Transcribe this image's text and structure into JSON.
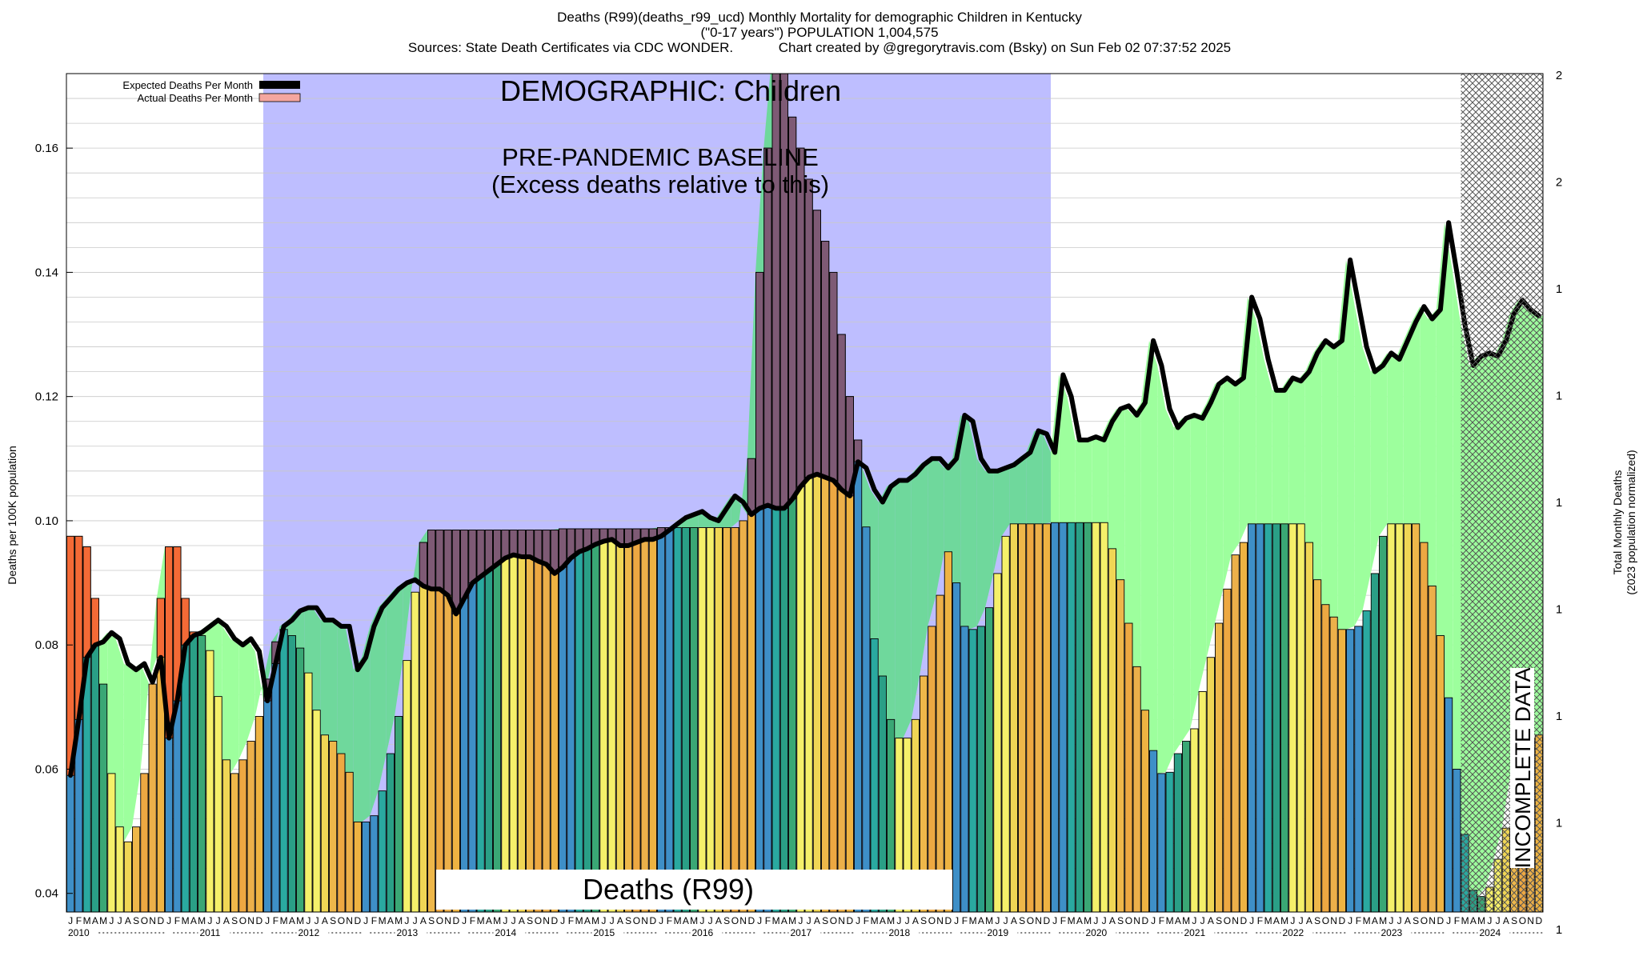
{
  "header": {
    "line1": "Deaths (R99)(deaths_r99_ucd) Monthly Mortality for demographic Children in Kentucky",
    "line2": "(\"0-17 years\") POPULATION 1,004,575",
    "line3": "Sources: State Death Certificates via CDC WONDER.            Chart created by @gregorytravis.com (Bsky) on Sun Feb 02 07:37:52 2025"
  },
  "labels": {
    "demographic": "DEMOGRAPHIC: Children",
    "baseline_line1": "PRE-PANDEMIC BASELINE",
    "baseline_line2": "(Excess deaths relative to this)",
    "cause": "Deaths (R99)",
    "incomplete": "INCOMPLETE DATA",
    "y_left": "Deaths per 100K population",
    "y_right_line1": "Total Monthly Deaths",
    "y_right_line2": "(2023 population normalized)"
  },
  "legend": {
    "expected": "Expected Deaths Per Month",
    "actual": "Actual Deaths Per Month"
  },
  "colors": {
    "baseline_region": "#bebeff",
    "excess_fill": "#9dff9d",
    "overlap_fill": "#6fd89c",
    "excess_actual": "#f46a36",
    "overlap_actual": "#7e5a75",
    "expected_line": "#000000",
    "incomplete_hatch": "#555555",
    "bar_palette": [
      "#3e8fc7",
      "#3e8fc7",
      "#2aa9a0",
      "#2a9f86",
      "#3aa775",
      "#f5f06a",
      "#f5f06a",
      "#f0d655",
      "#eeb74a",
      "#eda842",
      "#ecb04a",
      "#eeb342"
    ]
  },
  "chart_data": {
    "type": "bar",
    "title": "Deaths (R99)(deaths_r99_ucd) Monthly Mortality for demographic Children in Kentucky",
    "ylabel": "Deaths per 100K population",
    "y2label": "Total Monthly Deaths (2023 population normalized)",
    "ylim": [
      0.037,
      0.172
    ],
    "yticks": [
      0.04,
      0.06,
      0.08,
      0.1,
      0.12,
      0.14,
      0.16
    ],
    "right_ticks": [
      "1",
      "1",
      "1",
      "1",
      "1",
      "1",
      "1",
      "2",
      "2"
    ],
    "month_letters": [
      "J",
      "F",
      "M",
      "A",
      "M",
      "J",
      "J",
      "A",
      "S",
      "O",
      "N",
      "D"
    ],
    "years": [
      "2010",
      "2011",
      "2012",
      "2013",
      "2014",
      "2015",
      "2016",
      "2017",
      "2018",
      "2019",
      "2020",
      "2021",
      "2022",
      "2023",
      "2024"
    ],
    "baseline_period": [
      "2012-01",
      "2019-12"
    ],
    "incomplete_period": [
      "2024-04",
      "2024-12"
    ],
    "grid": true,
    "legend_position": "top-left",
    "series": [
      {
        "name": "Actual Deaths Per Month",
        "values": [
          0.0975,
          0.0975,
          0.0958,
          0.0875,
          0.0737,
          0.0593,
          0.0507,
          0.0483,
          0.0507,
          0.0593,
          0.0737,
          0.0875,
          0.0958,
          0.0958,
          0.0875,
          0.0821,
          0.0815,
          0.0791,
          0.0717,
          0.0615,
          0.0593,
          0.0615,
          0.0645,
          0.0685,
          0.0745,
          0.0805,
          0.0825,
          0.0815,
          0.0795,
          0.0755,
          0.0695,
          0.0655,
          0.0645,
          0.0625,
          0.0595,
          0.0515,
          0.0515,
          0.0525,
          0.0565,
          0.0625,
          0.0685,
          0.0775,
          0.0885,
          0.0965,
          0.0985,
          0.0985,
          0.0985,
          0.0985,
          0.0985,
          0.0985,
          0.0985,
          0.0985,
          0.0985,
          0.0985,
          0.0985,
          0.0985,
          0.0985,
          0.0985,
          0.0985,
          0.0985,
          0.0987,
          0.0987,
          0.0987,
          0.0987,
          0.0987,
          0.0987,
          0.0987,
          0.0987,
          0.0987,
          0.0987,
          0.0987,
          0.0987,
          0.0989,
          0.0989,
          0.0989,
          0.0989,
          0.0989,
          0.0989,
          0.0989,
          0.0989,
          0.0989,
          0.0989,
          0.1,
          0.11,
          0.14,
          0.16,
          0.175,
          0.175,
          0.165,
          0.16,
          0.155,
          0.15,
          0.145,
          0.14,
          0.13,
          0.12,
          0.113,
          0.099,
          0.081,
          0.075,
          0.068,
          0.065,
          0.065,
          0.068,
          0.075,
          0.083,
          0.088,
          0.095,
          0.09,
          0.083,
          0.0825,
          0.083,
          0.086,
          0.0915,
          0.0975,
          0.0995,
          0.0995,
          0.0995,
          0.0995,
          0.0995,
          0.0997,
          0.0997,
          0.0997,
          0.0997,
          0.0997,
          0.0997,
          0.0997,
          0.0955,
          0.0905,
          0.0835,
          0.0765,
          0.0695,
          0.063,
          0.0593,
          0.0595,
          0.0625,
          0.0645,
          0.0665,
          0.0725,
          0.078,
          0.0835,
          0.089,
          0.0945,
          0.0965,
          0.0995,
          0.0995,
          0.0995,
          0.0995,
          0.0995,
          0.0995,
          0.0995,
          0.0965,
          0.0905,
          0.0865,
          0.0845,
          0.0825,
          0.0825,
          0.083,
          0.0855,
          0.0915,
          0.0975,
          0.0995,
          0.0995,
          0.0995,
          0.0995,
          0.0965,
          0.0895,
          0.0815,
          0.0715,
          0.06,
          0.0495,
          0.0405,
          0.0395,
          0.041,
          0.0455,
          0.0505,
          0.059,
          0.063,
          0.065,
          0.0655
        ]
      },
      {
        "name": "Expected Deaths Per Month",
        "values": [
          0.059,
          0.068,
          0.078,
          0.08,
          0.0805,
          0.082,
          0.081,
          0.077,
          0.076,
          0.077,
          0.074,
          0.078,
          0.065,
          0.071,
          0.08,
          0.0815,
          0.082,
          0.083,
          0.084,
          0.083,
          0.081,
          0.08,
          0.081,
          0.079,
          0.071,
          0.077,
          0.083,
          0.084,
          0.0855,
          0.086,
          0.086,
          0.084,
          0.084,
          0.083,
          0.083,
          0.076,
          0.078,
          0.083,
          0.086,
          0.0875,
          0.089,
          0.09,
          0.0905,
          0.0895,
          0.089,
          0.089,
          0.088,
          0.085,
          0.0875,
          0.09,
          0.091,
          0.092,
          0.093,
          0.094,
          0.0945,
          0.0942,
          0.0942,
          0.0935,
          0.093,
          0.0915,
          0.0925,
          0.094,
          0.095,
          0.0955,
          0.0962,
          0.0967,
          0.097,
          0.096,
          0.096,
          0.0965,
          0.097,
          0.097,
          0.0975,
          0.0985,
          0.0995,
          0.1005,
          0.101,
          0.1015,
          0.1005,
          0.1,
          0.102,
          0.104,
          0.103,
          0.101,
          0.102,
          0.1025,
          0.102,
          0.102,
          0.1035,
          0.1055,
          0.107,
          0.1075,
          0.107,
          0.1065,
          0.105,
          0.104,
          0.1095,
          0.1085,
          0.105,
          0.103,
          0.1055,
          0.1065,
          0.1065,
          0.1075,
          0.109,
          0.11,
          0.11,
          0.1085,
          0.11,
          0.117,
          0.116,
          0.11,
          0.108,
          0.108,
          0.1085,
          0.109,
          0.11,
          0.111,
          0.1145,
          0.114,
          0.111,
          0.1235,
          0.12,
          0.113,
          0.113,
          0.1135,
          0.113,
          0.116,
          0.118,
          0.1185,
          0.117,
          0.119,
          0.129,
          0.125,
          0.118,
          0.115,
          0.1165,
          0.117,
          0.1165,
          0.119,
          0.122,
          0.123,
          0.122,
          0.123,
          0.136,
          0.1325,
          0.126,
          0.121,
          0.121,
          0.123,
          0.1225,
          0.124,
          0.127,
          0.129,
          0.128,
          0.129,
          0.142,
          0.135,
          0.128,
          0.124,
          0.125,
          0.127,
          0.126,
          0.129,
          0.132,
          0.1345,
          0.1325,
          0.134,
          0.148,
          0.14,
          0.1315,
          0.125,
          0.1265,
          0.127,
          0.1265,
          0.129,
          0.1335,
          0.1355,
          0.134,
          0.133
        ]
      }
    ]
  }
}
